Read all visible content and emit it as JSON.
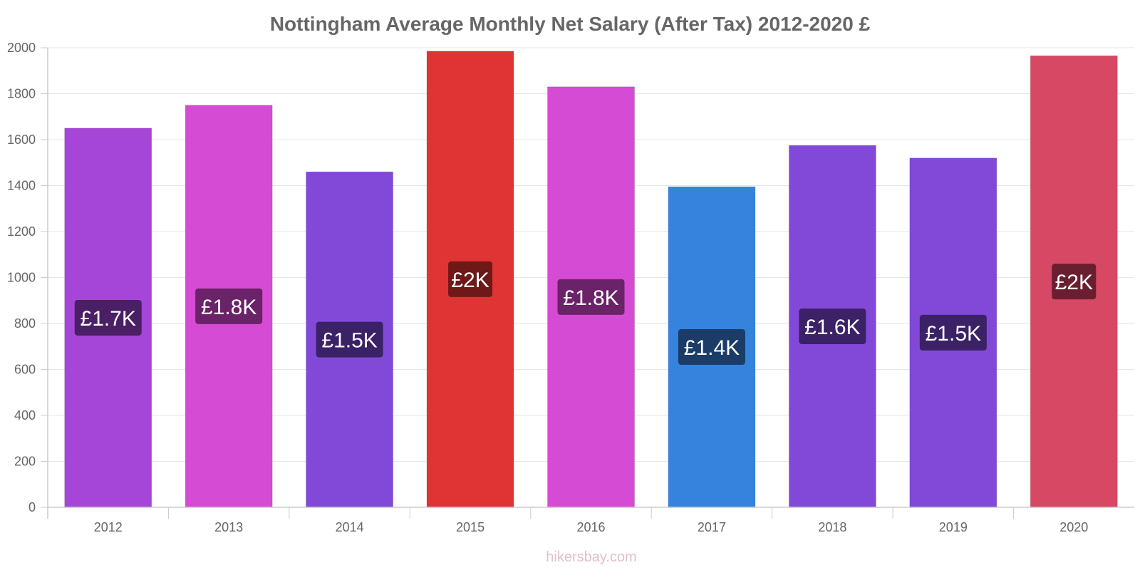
{
  "chart_data": {
    "type": "bar",
    "title": "Nottingham Average Monthly Net Salary (After Tax) 2012-2020 £",
    "xlabel": "",
    "ylabel": "",
    "ylim": [
      0,
      2000
    ],
    "yticks": [
      0,
      200,
      400,
      600,
      800,
      1000,
      1200,
      1400,
      1600,
      1800,
      2000
    ],
    "grid": true,
    "legend": "none",
    "categories": [
      "2012",
      "2013",
      "2014",
      "2015",
      "2016",
      "2017",
      "2018",
      "2019",
      "2020"
    ],
    "values": [
      1650,
      1750,
      1460,
      1985,
      1830,
      1395,
      1575,
      1520,
      1965
    ],
    "data_labels": [
      "£1.7K",
      "£1.8K",
      "£1.5K",
      "£2K",
      "£1.8K",
      "£1.4K",
      "£1.6K",
      "£1.5K",
      "£2K"
    ],
    "bar_colors": [
      "#a646d8",
      "#d64bd4",
      "#8249d9",
      "#e03434",
      "#d64bd4",
      "#3683dd",
      "#8249d9",
      "#8249d9",
      "#d64864"
    ],
    "label_colors": [
      "#4a1f66",
      "#6a2268",
      "#3b2166",
      "#6e1818",
      "#6a2268",
      "#1a3c66",
      "#3b2166",
      "#3b2166",
      "#6a1f31"
    ]
  },
  "watermark": "hikersbay.com"
}
